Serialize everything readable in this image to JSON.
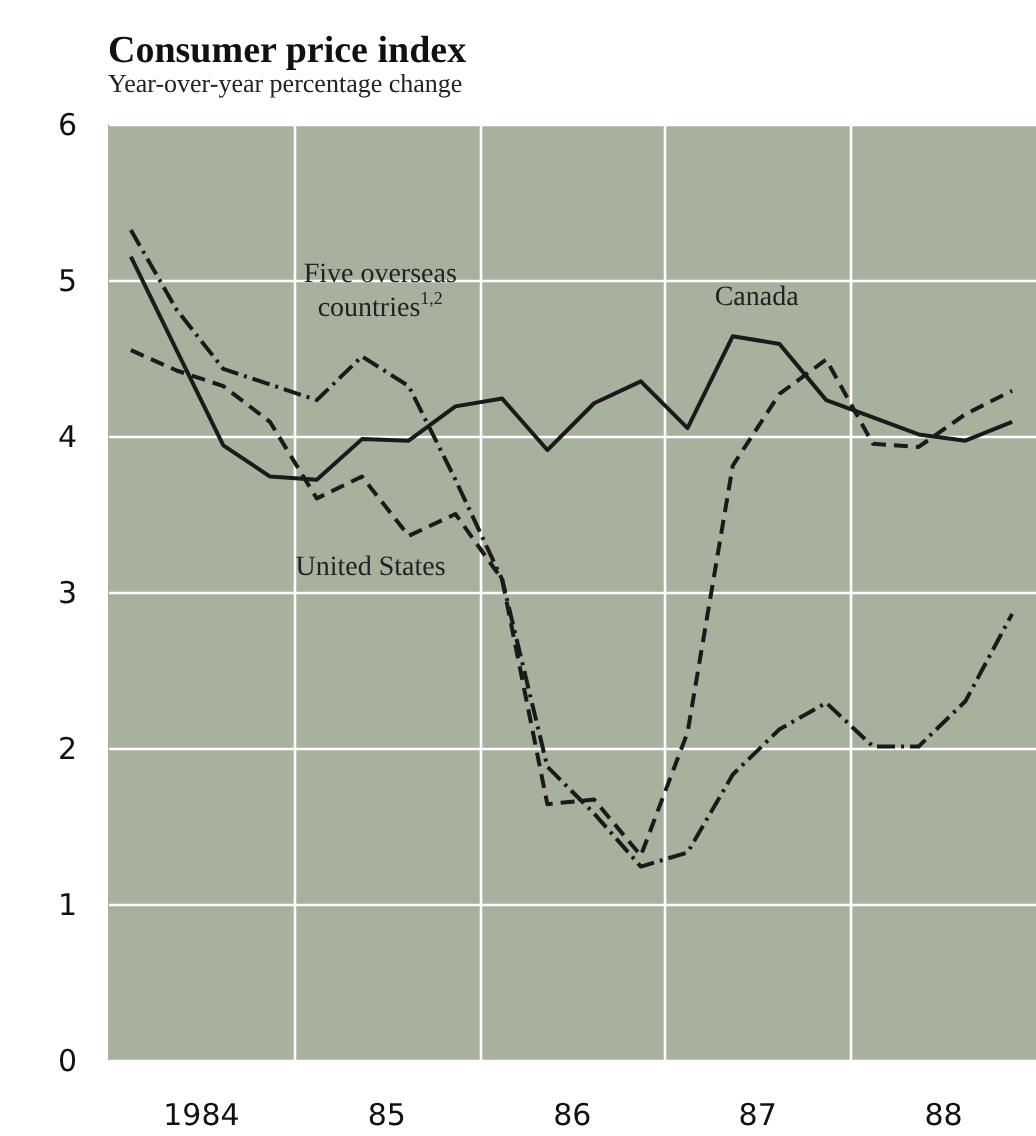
{
  "chart_data": {
    "type": "line",
    "title": "Consumer price index",
    "subtitle": "Year-over-year percentage change",
    "x": [
      "1984-02-15",
      "1984-05-15",
      "1984-08-15",
      "1984-11-15",
      "1985-02-15",
      "1985-05-15",
      "1985-08-15",
      "1985-11-15",
      "1986-02-15",
      "1986-05-15",
      "1986-08-15",
      "1986-11-15",
      "1987-02-15",
      "1987-05-15",
      "1987-08-15",
      "1987-11-15",
      "1988-02-15",
      "1988-05-15",
      "1988-08-15",
      "1988-11-15"
    ],
    "series": [
      {
        "name": "Canada",
        "color": "#1a1a1a",
        "line_style": "solid",
        "values": [
          5.15,
          4.55,
          3.94,
          3.74,
          3.72,
          3.98,
          3.97,
          4.19,
          4.24,
          3.91,
          4.21,
          4.35,
          4.05,
          4.64,
          4.59,
          4.23,
          4.12,
          4.01,
          3.97,
          4.09
        ]
      },
      {
        "name": "Five overseas countries$^{1,2}$",
        "color": "#1a1a1a",
        "line_style": "dashdot",
        "values": [
          5.32,
          4.81,
          4.43,
          4.33,
          4.23,
          4.51,
          4.32,
          3.72,
          3.08,
          1.88,
          1.58,
          1.24,
          1.33,
          1.83,
          2.12,
          2.29,
          2.01,
          2.01,
          2.3,
          2.86
        ]
      },
      {
        "name": "United States",
        "color": "#1a1a1a",
        "line_style": "dashed",
        "values": [
          4.55,
          4.42,
          4.32,
          4.09,
          3.6,
          3.74,
          3.36,
          3.5,
          3.08,
          1.64,
          1.67,
          1.31,
          2.1,
          3.81,
          4.27,
          4.49,
          3.95,
          3.93,
          4.14,
          4.29
        ]
      }
    ],
    "xlim": [
      "1984-01-01",
      "1989-01-01"
    ],
    "xticks": [
      {
        "value": "1984-07-01",
        "label": "1984"
      },
      {
        "value": "1985-01-01",
        "label": null
      },
      {
        "value": "1985-07-01",
        "label": "85"
      },
      {
        "value": "1986-01-01",
        "label": null
      },
      {
        "value": "1986-07-01",
        "label": "86"
      },
      {
        "value": "1987-01-01",
        "label": null
      },
      {
        "value": "1987-07-01",
        "label": "87"
      },
      {
        "value": "1988-01-01",
        "label": null
      },
      {
        "value": "1988-07-01",
        "label": "88"
      }
    ],
    "ylim": [
      0,
      6
    ],
    "yticks": [
      0,
      1,
      2,
      3,
      4,
      5,
      6
    ],
    "grid": true,
    "marker": "none"
  }
}
